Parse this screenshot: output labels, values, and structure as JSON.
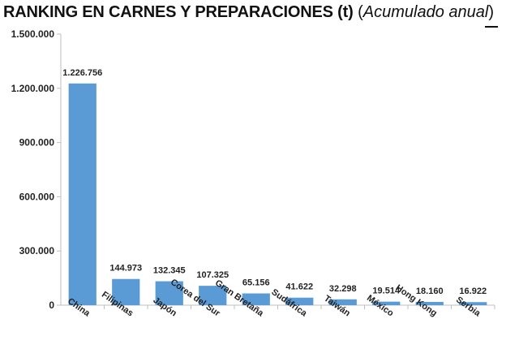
{
  "title": {
    "main": "RANKING EN CARNES Y PREPARACIONES (t)",
    "sub": "Acumulado anual"
  },
  "chart_data": {
    "type": "bar",
    "categories": [
      "China",
      "Filipinas",
      "Japón",
      "Corea del Sur",
      "Gran Bretaña",
      "Sudáfrica",
      "Taiwán",
      "México",
      "Hong Kong",
      "Serbia"
    ],
    "values": [
      1226756,
      144973,
      132345,
      107325,
      65156,
      41622,
      32298,
      19514,
      18160,
      16922
    ],
    "value_labels": [
      "1.226.756",
      "144.973",
      "132.345",
      "107.325",
      "65.156",
      "41.622",
      "32.298",
      "19.514",
      "18.160",
      "16.922"
    ],
    "yticks": [
      0,
      300000,
      600000,
      900000,
      1200000,
      1500000
    ],
    "ytick_labels": [
      "0",
      "300.000",
      "600.000",
      "900.000",
      "1.200.000",
      "1.500.000"
    ],
    "ylim": [
      0,
      1500000
    ],
    "grid": false,
    "legend": "none",
    "bar_color": "#5b9bd5",
    "axis_color": "#bfbfbf"
  }
}
